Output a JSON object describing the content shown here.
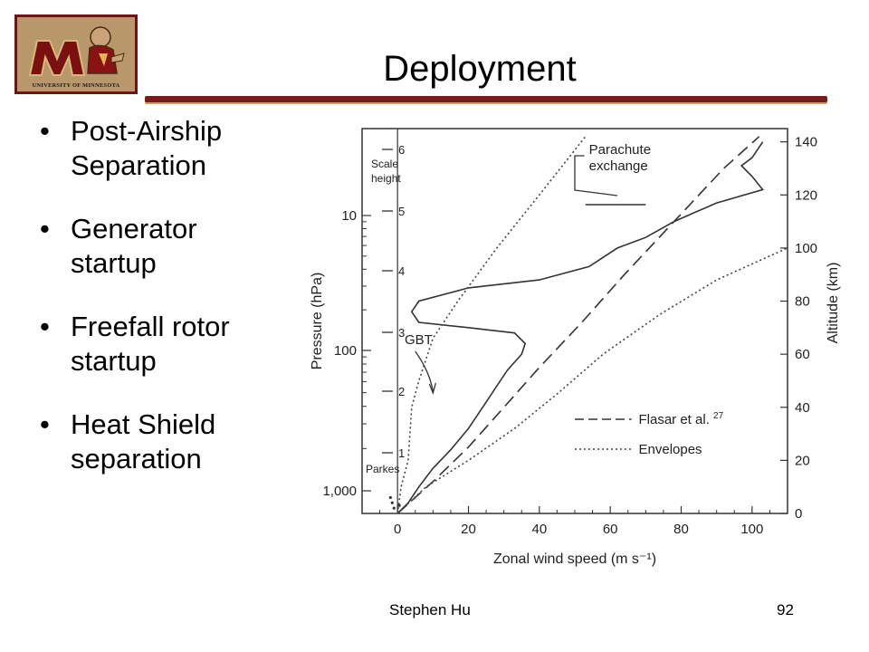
{
  "slide": {
    "title": "Deployment",
    "bullets": [
      {
        "text": "Post-Airship Separation"
      },
      {
        "text": "Generator startup"
      },
      {
        "text": "Freefall rotor startup"
      },
      {
        "text": "Heat Shield separation"
      }
    ],
    "footer_author": "Stephen Hu",
    "page_number": "92",
    "logo_text": "UNIVERSITY OF MINNESOTA",
    "colors": {
      "maroon": "#7a1a1a",
      "gold": "#c8a060"
    }
  },
  "chart_data": {
    "type": "line",
    "xlabel": "Zonal wind speed (m s⁻¹)",
    "ylabel": "Pressure (hPa)",
    "y2label": "Altitude (km)",
    "xlim": [
      -10,
      110
    ],
    "xticks": [
      "0",
      "20",
      "40",
      "60",
      "80",
      "100"
    ],
    "yticks_left": [
      "10",
      "100",
      "1,000"
    ],
    "yticks_right": [
      "0",
      "20",
      "40",
      "60",
      "80",
      "100",
      "120",
      "140"
    ],
    "scale_height_label": "Scale height",
    "scale_height_ticks": [
      "1",
      "2",
      "3",
      "4",
      "5",
      "6"
    ],
    "parkes_label": "Parkes",
    "annotations": {
      "gbt": "GBT",
      "parachute": "Parachute exchange"
    },
    "legend": [
      {
        "name": "Flasar et al.",
        "superscript": "27",
        "style": "dashed"
      },
      {
        "name": "Envelopes",
        "style": "dotted"
      }
    ],
    "series": [
      {
        "name": "GBT",
        "points": [
          [
            0,
            0
          ],
          [
            3,
            4
          ],
          [
            6,
            10
          ],
          [
            10,
            17
          ],
          [
            15,
            24
          ],
          [
            20,
            32
          ],
          [
            24,
            40
          ],
          [
            28,
            48
          ],
          [
            31,
            54
          ],
          [
            35,
            60
          ],
          [
            36,
            64
          ],
          [
            33,
            68
          ],
          [
            20,
            70
          ],
          [
            6,
            72
          ],
          [
            4,
            76
          ],
          [
            6,
            80
          ],
          [
            20,
            85
          ],
          [
            40,
            88
          ],
          [
            54,
            93
          ],
          [
            62,
            100
          ],
          [
            70,
            104
          ],
          [
            78,
            110
          ],
          [
            90,
            117
          ],
          [
            103,
            122
          ],
          [
            100,
            127
          ],
          [
            97,
            131
          ],
          [
            100,
            134
          ],
          [
            103,
            140
          ]
        ]
      },
      {
        "name": "Flasar et al.",
        "points": [
          [
            0,
            0
          ],
          [
            10,
            12
          ],
          [
            20,
            25
          ],
          [
            30,
            40
          ],
          [
            40,
            55
          ],
          [
            52,
            72
          ],
          [
            64,
            90
          ],
          [
            78,
            110
          ],
          [
            92,
            130
          ],
          [
            102,
            142
          ]
        ]
      },
      {
        "name": "Envelopes (inner)",
        "points": [
          [
            0,
            0
          ],
          [
            1,
            10
          ],
          [
            3,
            20
          ],
          [
            4,
            40
          ],
          [
            6,
            50
          ],
          [
            10,
            66
          ],
          [
            17,
            80
          ],
          [
            28,
            100
          ],
          [
            40,
            120
          ],
          [
            53,
            142
          ]
        ]
      },
      {
        "name": "Envelopes (outer)",
        "points": [
          [
            0,
            0
          ],
          [
            8,
            10
          ],
          [
            20,
            20
          ],
          [
            33,
            32
          ],
          [
            45,
            45
          ],
          [
            58,
            60
          ],
          [
            74,
            75
          ],
          [
            90,
            88
          ],
          [
            110,
            100
          ]
        ]
      }
    ]
  }
}
